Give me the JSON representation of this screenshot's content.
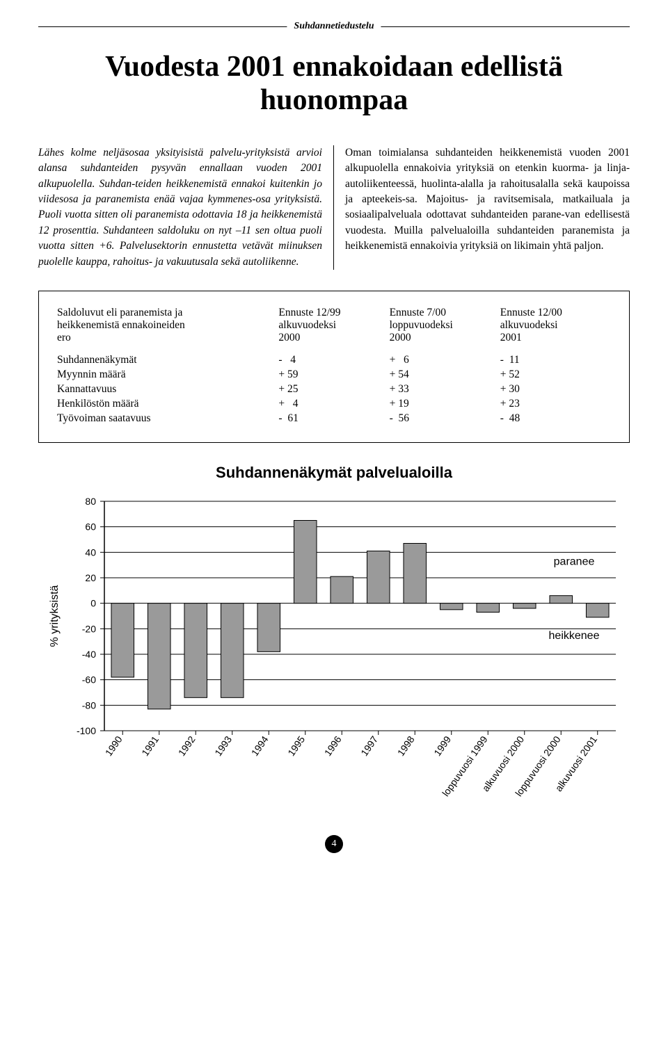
{
  "running_header": "Suhdannetiedustelu",
  "title": "Vuodesta 2001 ennakoidaan edellistä huonompaa",
  "left_para": "Lähes kolme neljäsosaa yksityisistä palvelu-yrityksistä arvioi alansa suhdanteiden pysyvän ennallaan vuoden 2001 alkupuolella. Suhdan-teiden heikkenemistä ennakoi kuitenkin jo viidesosa ja paranemista enää vajaa kymmenes-osa yrityksistä. Puoli vuotta sitten oli paranemista odottavia 18 ja heikkenemistä 12 prosenttia. Suhdanteen saldoluku on nyt –11 sen oltua puoli vuotta sitten +6. Palvelusektorin ennustetta vetävät miinuksen puolelle kauppa, rahoitus- ja vakuutusala sekä autoliikenne.",
  "right_para": "Oman toimialansa suhdanteiden heikkenemistä vuoden 2001 alkupuolella ennakoivia yrityksiä on etenkin kuorma- ja linja-autoliikenteessä, huolinta-alalla ja rahoitusalalla sekä kaupoissa ja apteekeis-sa. Majoitus- ja ravitsemisala, matkailuala ja sosiaalipalveluala odottavat suhdanteiden parane-van edellisestä vuodesta. Muilla palvelualoilla suhdanteiden paranemista ja heikkenemistä ennakoivia yrityksiä on likimain yhtä paljon.",
  "table": {
    "col0": [
      "Saldoluvut eli paranemista ja",
      "heikkenemistä ennakoineiden",
      "ero"
    ],
    "col1": [
      "Ennuste 12/99",
      "alkuvuodeksi",
      "2000"
    ],
    "col2": [
      "Ennuste 7/00",
      "loppuvuodeksi",
      "2000"
    ],
    "col3": [
      "Ennuste 12/00",
      "alkuvuodeksi",
      "2001"
    ],
    "rows": [
      {
        "label": "Suhdannenäkymät",
        "v1": "-   4",
        "v2": "+   6",
        "v3": "-  11"
      },
      {
        "label": "Myynnin määrä",
        "v1": "+ 59",
        "v2": "+ 54",
        "v3": "+ 52"
      },
      {
        "label": "Kannattavuus",
        "v1": "+ 25",
        "v2": "+ 33",
        "v3": "+ 30"
      },
      {
        "label": "Henkilöstön määrä",
        "v1": "+   4",
        "v2": "+ 19",
        "v3": "+ 23"
      },
      {
        "label": "Työvoiman saatavuus",
        "v1": "-  61",
        "v2": "-  56",
        "v3": "-  48"
      }
    ]
  },
  "chart": {
    "title": "Suhdannenäkymät palvelualoilla",
    "type": "bar",
    "y_axis_label": "% yrityksistä",
    "ylim": [
      -100,
      80
    ],
    "yticks": [
      80,
      60,
      40,
      20,
      0,
      -20,
      -40,
      -60,
      -80,
      -100
    ],
    "categories": [
      "1990",
      "1991",
      "1992",
      "1993",
      "1994",
      "1995",
      "1996",
      "1997",
      "1998",
      "1999",
      "loppuvuosi 1999",
      "alkuvuosi 2000",
      "loppuvuosi 2000",
      "alkuvuosi 2001"
    ],
    "values": [
      -58,
      -83,
      -74,
      -74,
      -38,
      65,
      21,
      41,
      47,
      -5,
      -7,
      -4,
      6,
      -11
    ],
    "bar_color": "#9a9a9a",
    "bar_border": "#000000",
    "axis_color": "#000000",
    "grid_color": "#000000",
    "bar_width": 0.62,
    "label_paranee": "paranee",
    "label_heikkenee": "heikkenee",
    "label_fontsize": 16,
    "tick_fontsize": 14,
    "rotate_x_deg": -55
  },
  "page_number": "4"
}
